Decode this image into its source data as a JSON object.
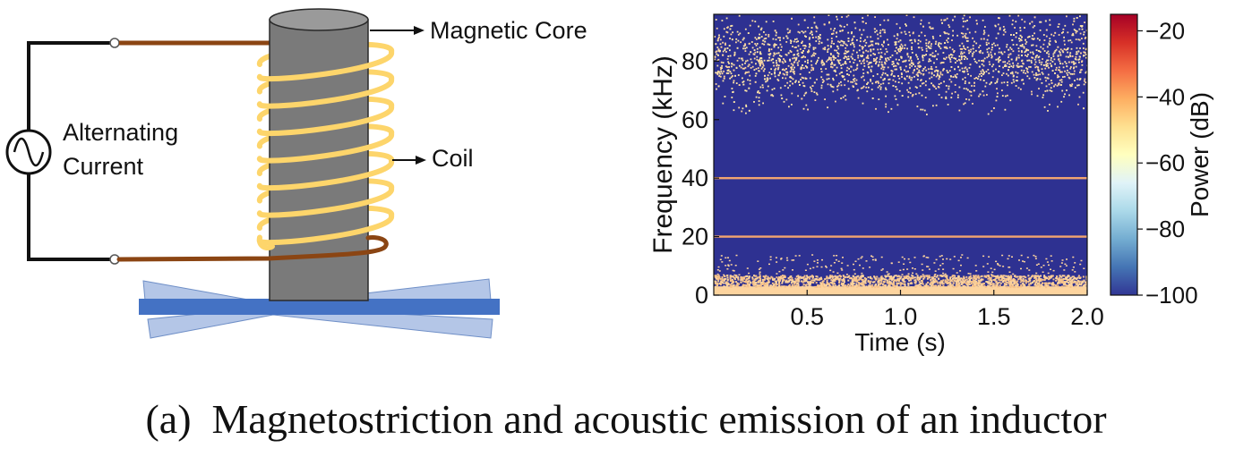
{
  "diagram": {
    "source_label": [
      "Alternating",
      "Current"
    ],
    "core_label": "Magnetic Core",
    "coil_label": "Coil"
  },
  "chart_data": {
    "type": "heatmap",
    "title": "",
    "xlabel": "Time (s)",
    "ylabel": "Frequency (kHz)",
    "xlim": [
      0,
      2.0
    ],
    "ylim": [
      0,
      96
    ],
    "xticks": [
      "0.5",
      "1.0",
      "1.5",
      "2.0"
    ],
    "yticks": [
      "0",
      "20",
      "40",
      "60",
      "80"
    ],
    "colorbar": {
      "label": "Power (dB)",
      "range": [
        -100,
        -15
      ],
      "ticks": [
        "−20",
        "−40",
        "−60",
        "−80",
        "−100"
      ],
      "colors": [
        "#313695",
        "#4575b4",
        "#74add1",
        "#abd9e9",
        "#e0f3f8",
        "#ffffbf",
        "#fee090",
        "#fdae61",
        "#f46d43",
        "#d73027",
        "#a50026"
      ]
    },
    "background_power_db": -100,
    "tones_khz": [
      20,
      40
    ],
    "noise_bands_khz": [
      [
        0,
        7
      ],
      [
        62,
        96
      ]
    ]
  },
  "caption": "(a)  Magnetostriction and acoustic emission of an inductor",
  "colors": {
    "wire_black": "#111111",
    "wire_brown": "#8b4513",
    "coil": "#fdd56b",
    "core": "#7a7a7a",
    "core_top": "#9a9a9a",
    "plate_light": "#b4c6e7",
    "plate_dark": "#4472c4",
    "heat_bg": "#2e3191",
    "tone": "#f2a470",
    "noise_low": "#fdd49e",
    "noise_high": "#fee6a8"
  }
}
